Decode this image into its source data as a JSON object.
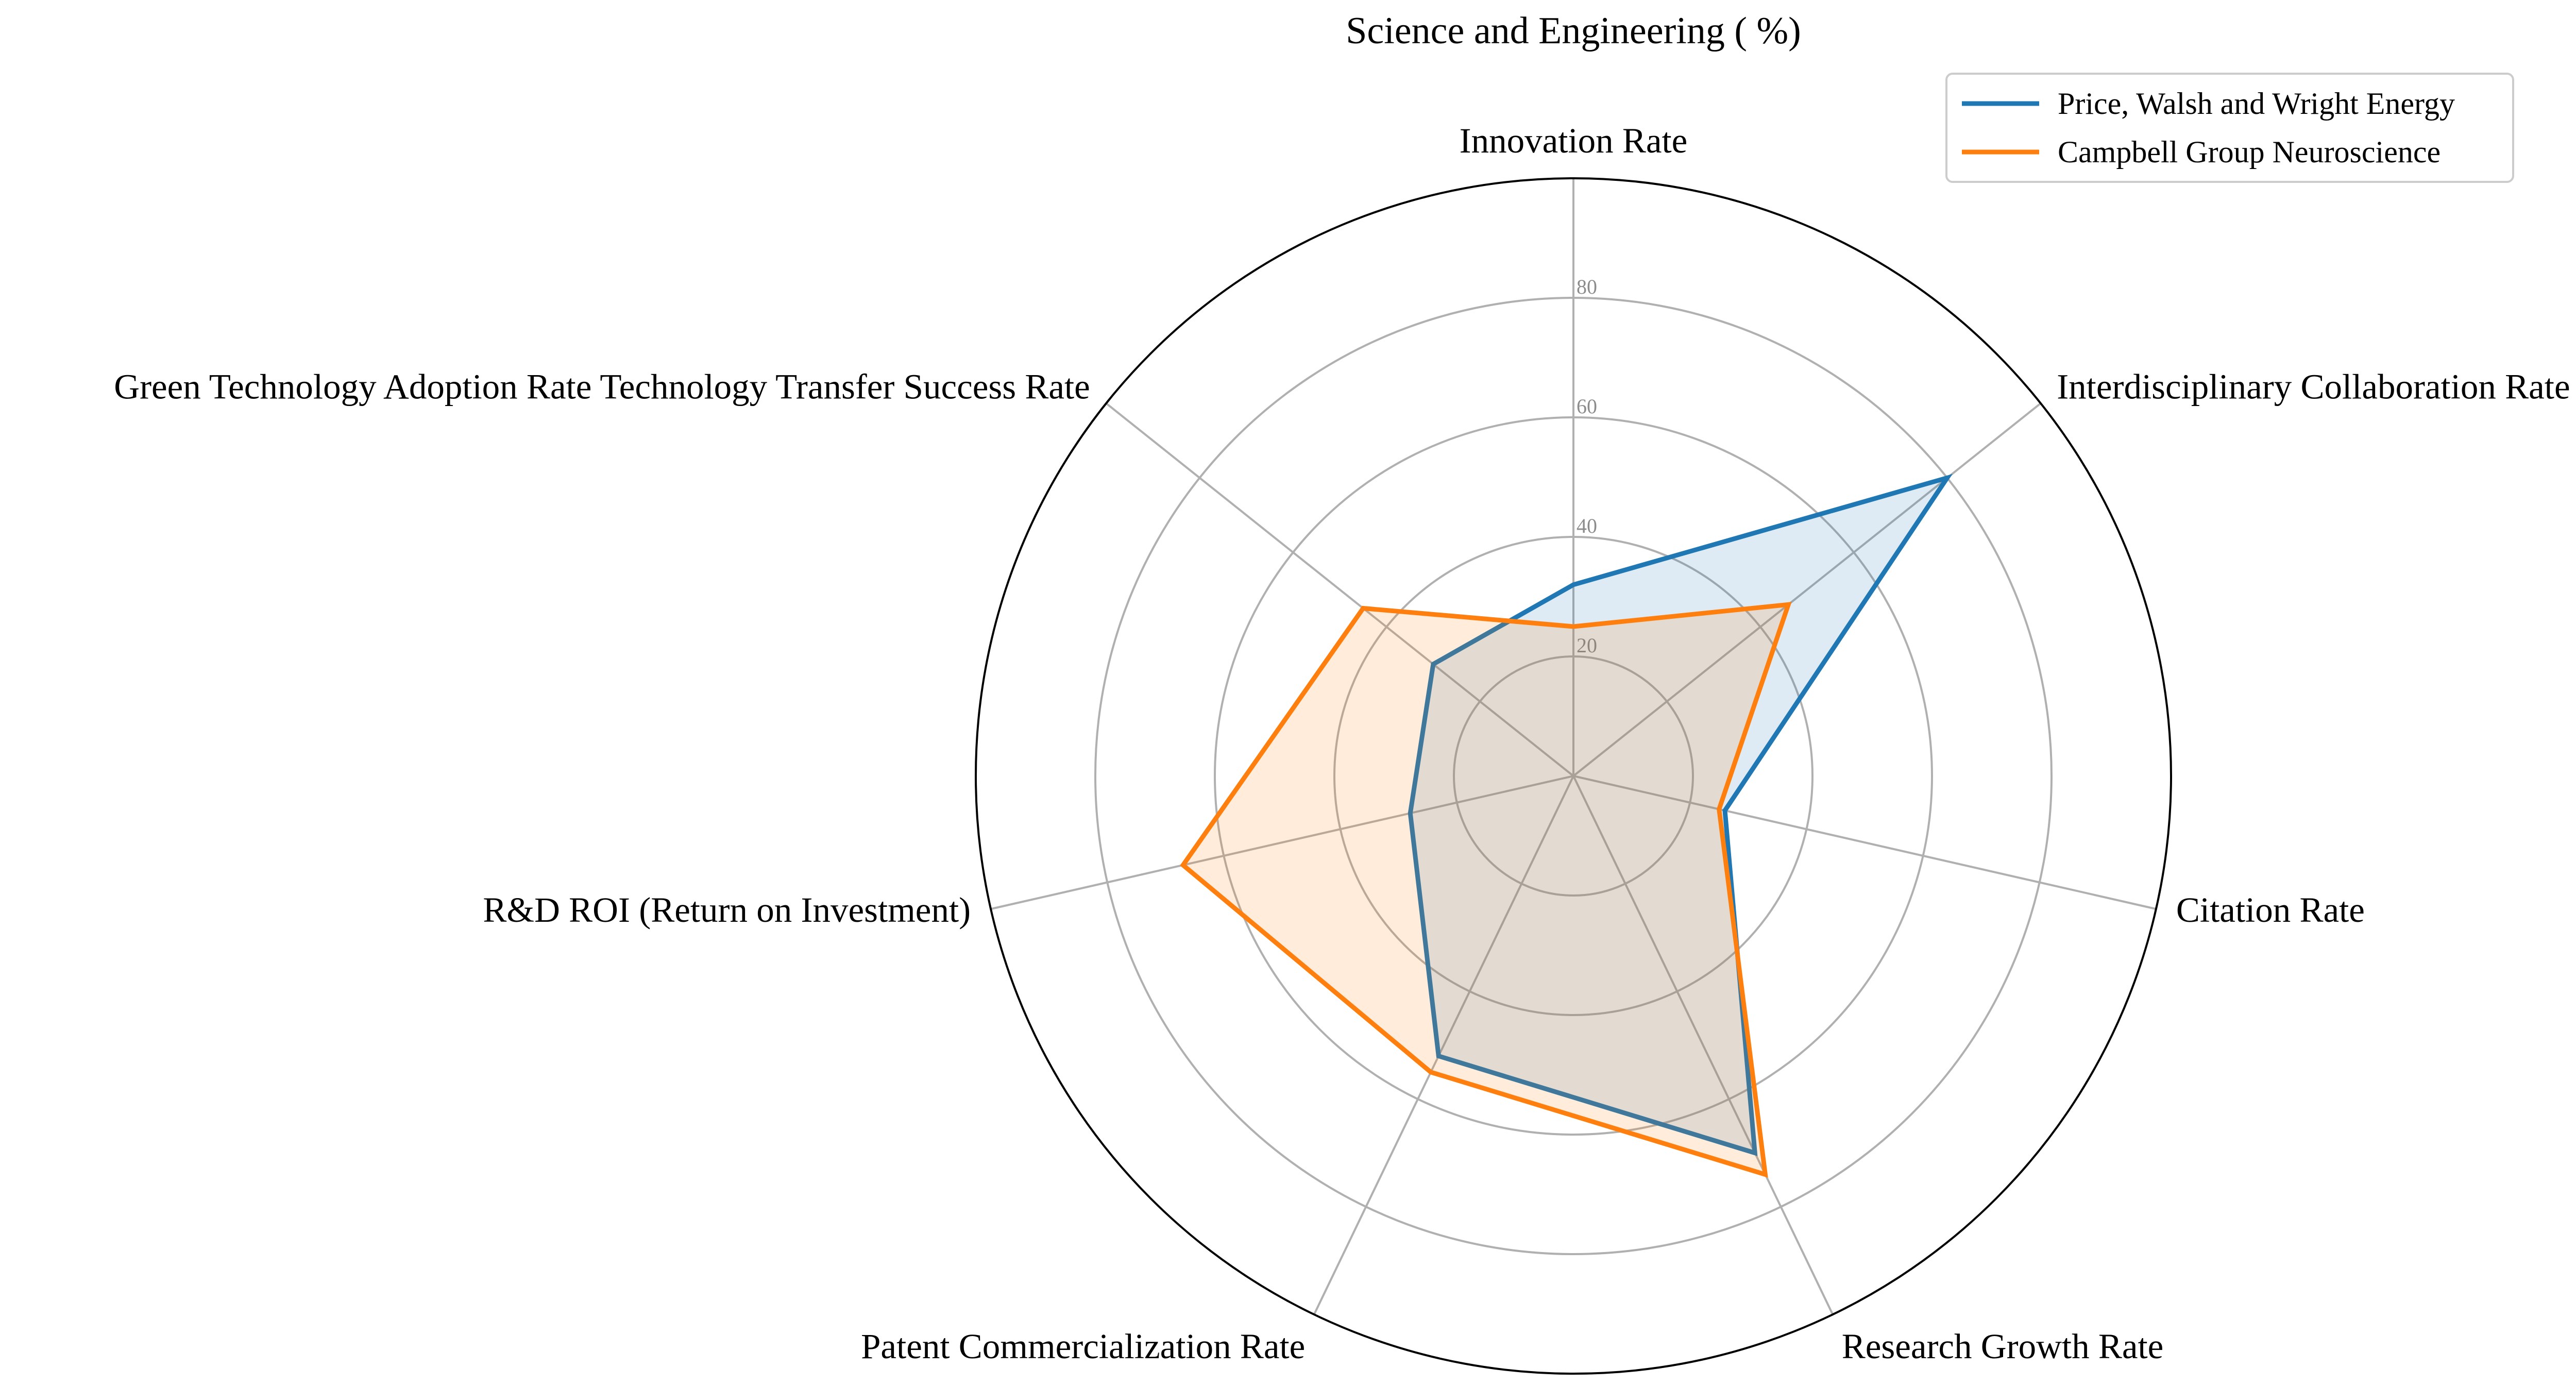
{
  "chart_data": {
    "type": "radar",
    "title": "Science and Engineering ( %)",
    "categories": [
      "Innovation Rate",
      "Interdisciplinary Collaboration Rate",
      "Citation Rate",
      "Research Growth Rate",
      "Patent Commercialization Rate",
      "R&D ROI (Return on Investment)",
      "Green Technology Adoption Rate Technology Transfer Success Rate"
    ],
    "rlim": [
      0,
      100
    ],
    "r_ticks": [
      20,
      40,
      60,
      80
    ],
    "r_tick_labels": [
      "20",
      "40",
      "60",
      "80"
    ],
    "grid": true,
    "legend_position": "top-right",
    "series": [
      {
        "name": "Price, Walsh and Wright Energy",
        "color": "#1f77b4",
        "values": [
          32,
          80,
          26,
          70,
          52,
          28,
          30
        ]
      },
      {
        "name": "Campbell Group Neuroscience",
        "color": "#ff7f0e",
        "values": [
          25,
          46,
          25,
          74,
          55,
          67,
          45
        ]
      }
    ]
  }
}
